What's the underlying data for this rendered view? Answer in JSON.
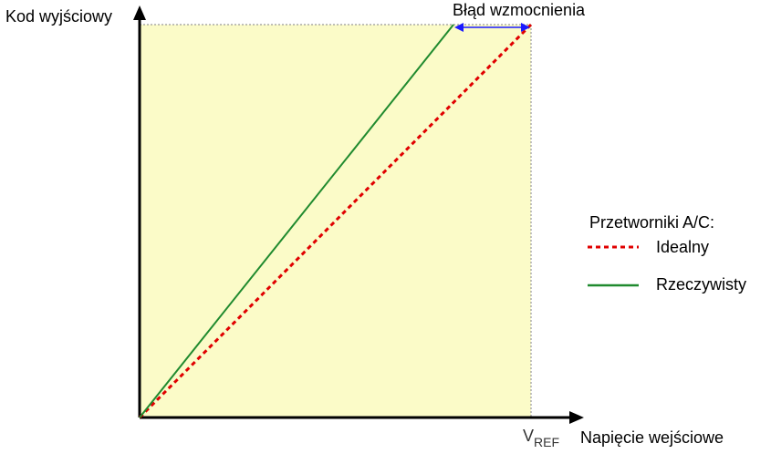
{
  "labels": {
    "y_axis": "Kod wyjściowy",
    "x_axis": "Napięcie wejściowe",
    "gain_error": "Błąd wzmocnienia",
    "vref_main": "V",
    "vref_sub": "REF"
  },
  "legend": {
    "title": "Przetworniki A/C:",
    "items": [
      {
        "label": "Idealny",
        "style": "dashed",
        "color": "#e00000"
      },
      {
        "label": "Rzeczywisty",
        "style": "solid",
        "color": "#1f8a2e"
      }
    ]
  },
  "colors": {
    "plot_fill": "#fbfbc8",
    "axis": "#000000",
    "ideal": "#e00000",
    "real": "#1f8a2e",
    "arrow": "#1a1aff",
    "guide": "#999999"
  }
}
